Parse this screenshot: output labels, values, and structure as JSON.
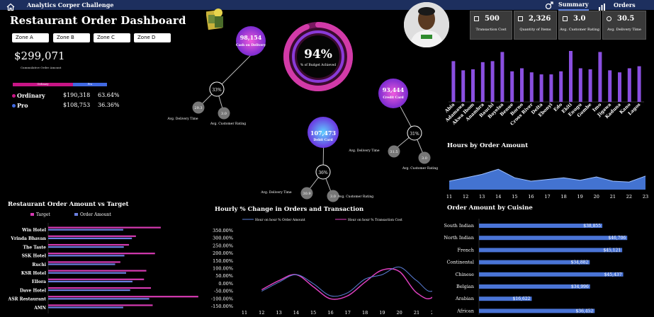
{
  "topbar": {
    "title": "Analytics Corper Challenge",
    "tabs": [
      {
        "label": "Summary"
      },
      {
        "label": "Orders"
      }
    ]
  },
  "header": {
    "title": "Restaurant Order Dashboard",
    "zones": [
      "Zone A",
      "Zone B",
      "Zone C",
      "Zone D"
    ]
  },
  "summary": {
    "total": "$299,071",
    "total_label": "Cummulative Order Amount",
    "legend": [
      "Ordinary",
      "Pro"
    ],
    "customers": [
      {
        "name": "Ordinary",
        "amount": "$190,318",
        "pct": "63.64%",
        "color": "#c71585"
      },
      {
        "name": "Pro",
        "amount": "$108,753",
        "pct": "36.36%",
        "color": "#4169e1"
      }
    ]
  },
  "kpis": [
    {
      "value": "500",
      "label": "Transaction Cost"
    },
    {
      "value": "2,326",
      "label": "Quantity of Items"
    },
    {
      "value": "3.0",
      "label": "Avg. Customer Rating"
    },
    {
      "value": "30.5",
      "label": "Avg. Delivery Time"
    }
  ],
  "gauge": {
    "value": "94%",
    "label": "% of Budget Achieved",
    "fraction": 0.94
  },
  "payments": [
    {
      "value": "98,154",
      "label": "Cash on Delivery",
      "pct": "33%",
      "delivery": "29.3",
      "rating": "3.0"
    },
    {
      "value": "93,444",
      "label": "Credit Card",
      "pct": "31%",
      "delivery": "31.5",
      "rating": "3.0"
    },
    {
      "value": "107,473",
      "label": "Debit Card",
      "pct": "36%",
      "delivery": "30.9",
      "rating": "3.0"
    }
  ],
  "node_labels": {
    "delivery": "Avg. Delivery Time",
    "rating": "Avg. Customer Rating"
  },
  "sections": {
    "hours": "Hours by Order Amount",
    "target": "Restaurant Order Amount vs Target",
    "hourly": "Hourly % Change in Orders and Transaction",
    "cuisine": "Order Amount by Cuisine"
  },
  "chart_data": [
    {
      "type": "bar",
      "categories": [
        "Abia",
        "Adamawa",
        "Akwa Ibom",
        "Anambra",
        "Bauchi",
        "Bayelsa",
        "Benue",
        "Borno",
        "Cross River",
        "Delta",
        "Ebonyi",
        "Edo",
        "Ekiti",
        "Enugu",
        "Gombe",
        "Imo",
        "Jigawa",
        "Kaduna",
        "Kano",
        "Lagos"
      ],
      "values": [
        80,
        62,
        64,
        78,
        80,
        98,
        60,
        66,
        58,
        54,
        54,
        60,
        100,
        66,
        64,
        98,
        62,
        58,
        66,
        70
      ],
      "colors": {
        "bar": "#8a4fe0"
      }
    },
    {
      "type": "area",
      "x": [
        11,
        12,
        13,
        14,
        15,
        16,
        17,
        18,
        19,
        20,
        21,
        22,
        23
      ],
      "values": [
        10,
        14,
        18,
        24,
        14,
        10,
        12,
        14,
        11,
        15,
        10,
        9,
        16
      ],
      "colors": {
        "fill": "#4a7fe8"
      }
    },
    {
      "type": "bar",
      "orientation": "horizontal",
      "title": "Restaurant Order Amount vs Target",
      "legend": [
        "Target",
        "Order Amount"
      ],
      "categories": [
        "Win Hotel",
        "Vrinda Bhavan",
        "The Taste",
        "SSK Hotel",
        "Ruchi",
        "KSR Hotel",
        "Ellora",
        "Dave Hotel",
        "ASR Restaurant",
        "AMN"
      ],
      "series": [
        {
          "name": "Target",
          "values": [
            19500,
            15200,
            14000,
            18500,
            12500,
            17000,
            16600,
            17800,
            26000,
            18100
          ]
        },
        {
          "name": "Order Amount",
          "values": [
            13000,
            14500,
            13100,
            13200,
            11600,
            13500,
            14600,
            14200,
            17500,
            13000
          ]
        }
      ],
      "colors": {
        "target": "#d63ab2",
        "order": "#6a7fe0"
      }
    },
    {
      "type": "line",
      "x": [
        11,
        12,
        13,
        14,
        15,
        16,
        17,
        18,
        19,
        20,
        21,
        22,
        23
      ],
      "ylim": [
        -150,
        350
      ],
      "yticks": [
        "350.00%",
        "300.00%",
        "250.00%",
        "200.00%",
        "150.00%",
        "100.00%",
        "50.00%",
        "0.00%",
        "-50.00%",
        "-100.00%",
        "-150.00%"
      ],
      "series": [
        {
          "name": "Hour on hour % Order Amount",
          "values": [
            null,
            -50,
            10,
            60,
            0,
            -80,
            -60,
            30,
            60,
            110,
            20,
            -40,
            260
          ]
        },
        {
          "name": "Hour on hour % Transaction Cost",
          "values": [
            null,
            -40,
            20,
            60,
            -20,
            -100,
            -80,
            10,
            90,
            80,
            -60,
            -80,
            200
          ]
        }
      ],
      "colors": {
        "order": "#5b7fd9",
        "transaction": "#e040c0"
      }
    },
    {
      "type": "bar",
      "orientation": "horizontal",
      "categories": [
        "South Indian",
        "North Indian",
        "French",
        "Continental",
        "Chinese",
        "Belgian",
        "Arabian",
        "African"
      ],
      "values": [
        38855,
        46706,
        45121,
        34882,
        45437,
        34996,
        16622,
        36452
      ],
      "labels": [
        "$38,855",
        "$46,706",
        "$45,121",
        "$34,882",
        "$45,437",
        "$34,996",
        "$16,622",
        "$36,452"
      ],
      "colors": {
        "bar": "#4a74d6"
      }
    }
  ]
}
